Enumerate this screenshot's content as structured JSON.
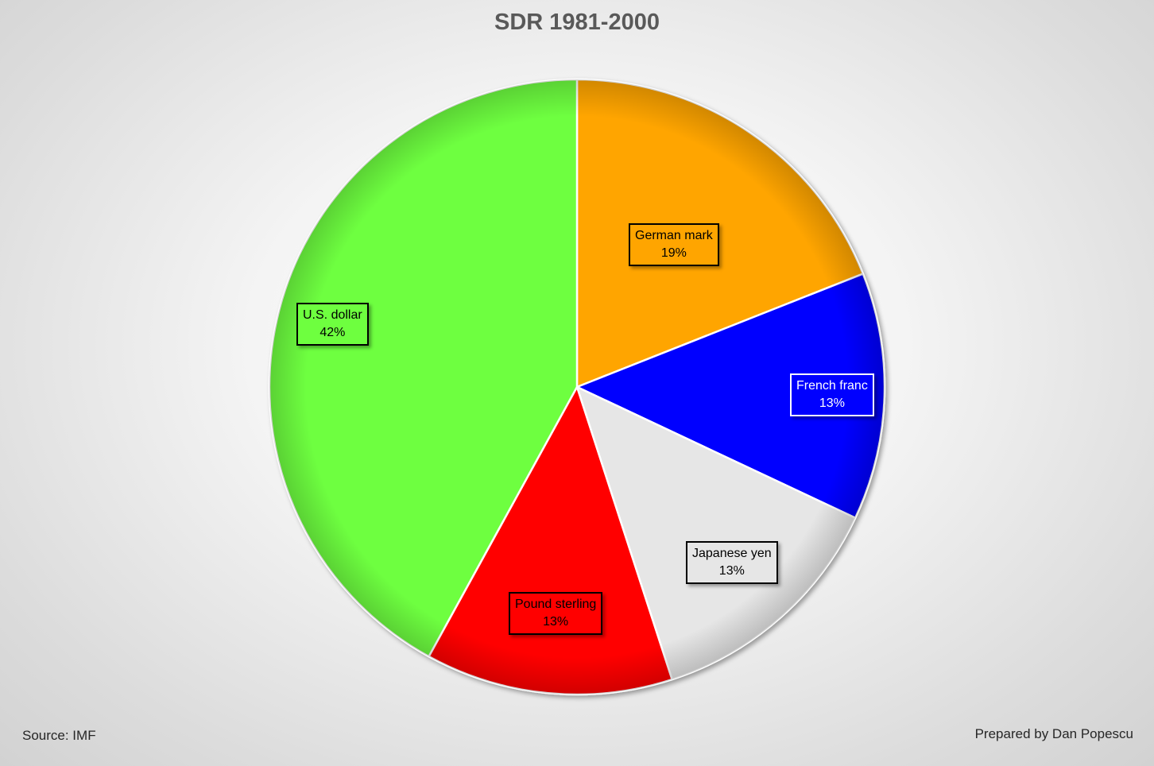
{
  "chart_data": {
    "type": "pie",
    "title": "SDR 1981-2000",
    "slices": [
      {
        "label": "German mark",
        "value": 19,
        "value_label": "19%",
        "color": "#FFA500",
        "label_text_color": "#000000",
        "label_border_color": "#000000"
      },
      {
        "label": "French franc",
        "value": 13,
        "value_label": "13%",
        "color": "#0000FF",
        "label_text_color": "#FFFFFF",
        "label_border_color": "#FFFFFF"
      },
      {
        "label": "Japanese yen",
        "value": 13,
        "value_label": "13%",
        "color": "#E6E6E6",
        "label_text_color": "#000000",
        "label_border_color": "#000000"
      },
      {
        "label": "Pound sterling",
        "value": 13,
        "value_label": "13%",
        "color": "#FF0000",
        "label_text_color": "#000000",
        "label_border_color": "#000000"
      },
      {
        "label": "U.S. dollar",
        "value": 42,
        "value_label": "42%",
        "color": "#6EFF3F",
        "label_text_color": "#000000",
        "label_border_color": "#000000"
      }
    ],
    "start_angle": "12 o'clock",
    "direction": "clockwise",
    "legend": "none"
  },
  "footer": {
    "source": "Source: IMF",
    "prepared_by": "Prepared by Dan Popescu"
  }
}
